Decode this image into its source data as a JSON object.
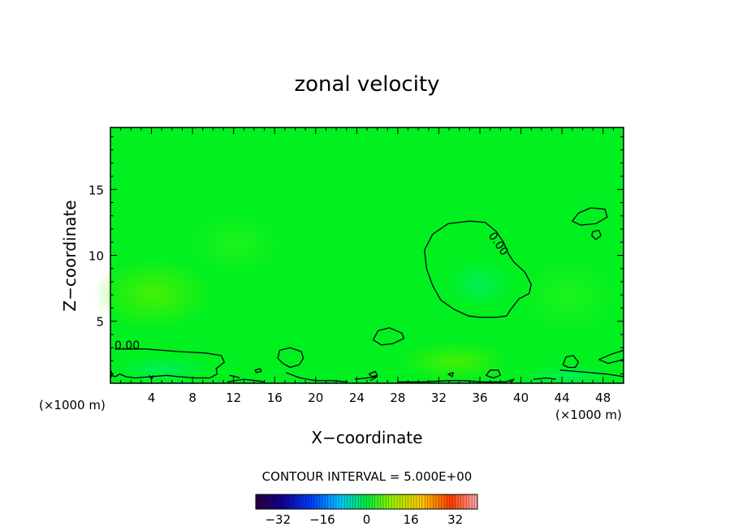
{
  "chart_data": {
    "type": "heatmap",
    "title": "zonal velocity",
    "xlabel": "X−coordinate",
    "ylabel": "Z−coordinate",
    "x_units_left": "(×1000 m)",
    "x_units_right": "(×1000 m)",
    "xlim": [
      0,
      50
    ],
    "ylim": [
      0.3,
      19.7
    ],
    "x_ticks": [
      4,
      8,
      12,
      16,
      20,
      24,
      28,
      32,
      36,
      40,
      44,
      48
    ],
    "x_tick_labels": [
      "4",
      "8",
      "12",
      "16",
      "20",
      "24",
      "28",
      "32",
      "36",
      "40",
      "44",
      "48"
    ],
    "y_ticks": [
      5,
      10,
      15
    ],
    "y_tick_labels": [
      "5",
      "10",
      "15"
    ],
    "contour_labels": [
      {
        "text": "0.00",
        "x": 36.8,
        "y": 11.5,
        "rotate": 55
      },
      {
        "text": "0.00",
        "x": 0.4,
        "y": 2.9,
        "rotate": 0
      }
    ],
    "contours": [
      {
        "name": "big-loop",
        "closed": true,
        "points": [
          [
            35.0,
            12.6
          ],
          [
            36.5,
            12.5
          ],
          [
            37.6,
            11.8
          ],
          [
            38.3,
            11.0
          ],
          [
            38.8,
            10.1
          ],
          [
            39.3,
            9.5
          ],
          [
            40.4,
            8.7
          ],
          [
            41.0,
            7.8
          ],
          [
            40.8,
            7.1
          ],
          [
            39.8,
            6.7
          ],
          [
            39.0,
            5.9
          ],
          [
            38.6,
            5.4
          ],
          [
            37.6,
            5.3
          ],
          [
            36.0,
            5.3
          ],
          [
            34.9,
            5.4
          ],
          [
            33.5,
            5.9
          ],
          [
            32.2,
            6.6
          ],
          [
            31.4,
            7.7
          ],
          [
            30.8,
            9.0
          ],
          [
            30.6,
            10.4
          ],
          [
            31.4,
            11.6
          ],
          [
            32.9,
            12.4
          ]
        ]
      },
      {
        "name": "loop-44-13",
        "closed": true,
        "points": [
          [
            45.0,
            12.6
          ],
          [
            45.6,
            13.2
          ],
          [
            46.8,
            13.6
          ],
          [
            48.2,
            13.5
          ],
          [
            48.4,
            12.9
          ],
          [
            47.3,
            12.4
          ],
          [
            45.8,
            12.3
          ]
        ]
      },
      {
        "name": "loop-47-11",
        "closed": true,
        "points": [
          [
            47.0,
            11.8
          ],
          [
            47.6,
            11.9
          ],
          [
            47.8,
            11.5
          ],
          [
            47.3,
            11.2
          ],
          [
            46.9,
            11.5
          ]
        ]
      },
      {
        "name": "loop-26-4",
        "closed": true,
        "points": [
          [
            25.6,
            3.6
          ],
          [
            26.1,
            4.3
          ],
          [
            27.2,
            4.5
          ],
          [
            28.4,
            4.1
          ],
          [
            28.6,
            3.7
          ],
          [
            27.5,
            3.3
          ],
          [
            26.4,
            3.2
          ]
        ]
      },
      {
        "name": "loop-17-2",
        "closed": true,
        "points": [
          [
            16.3,
            2.2
          ],
          [
            16.5,
            2.8
          ],
          [
            17.5,
            3.0
          ],
          [
            18.6,
            2.7
          ],
          [
            18.8,
            2.2
          ],
          [
            18.4,
            1.7
          ],
          [
            17.5,
            1.5
          ],
          [
            16.8,
            1.8
          ]
        ]
      },
      {
        "name": "loop-44-2",
        "closed": true,
        "points": [
          [
            44.1,
            1.7
          ],
          [
            44.4,
            2.3
          ],
          [
            45.1,
            2.4
          ],
          [
            45.6,
            1.9
          ],
          [
            45.3,
            1.5
          ],
          [
            44.6,
            1.5
          ]
        ]
      },
      {
        "name": "left-bottom",
        "closed": false,
        "points": [
          [
            0.4,
            2.9
          ],
          [
            3.4,
            2.9
          ],
          [
            6.6,
            2.7
          ],
          [
            9.2,
            2.6
          ],
          [
            10.8,
            2.4
          ],
          [
            11.1,
            1.9
          ],
          [
            10.3,
            1.4
          ],
          [
            10.4,
            1.0
          ],
          [
            9.7,
            0.7
          ],
          [
            8.3,
            0.7
          ],
          [
            6.6,
            0.8
          ],
          [
            5.5,
            0.9
          ],
          [
            4.0,
            0.8
          ],
          [
            2.4,
            0.7
          ],
          [
            1.5,
            0.8
          ],
          [
            0.9,
            1.0
          ],
          [
            0.5,
            0.8
          ],
          [
            0.0,
            0.9
          ]
        ]
      },
      {
        "name": "bottom-band-a",
        "closed": false,
        "points": [
          [
            17.1,
            1.1
          ],
          [
            18.5,
            0.7
          ],
          [
            20.0,
            0.5
          ],
          [
            21.7,
            0.5
          ],
          [
            23.1,
            0.4
          ]
        ]
      },
      {
        "name": "bottom-band-b",
        "closed": false,
        "points": [
          [
            11.4,
            0.4
          ],
          [
            13.0,
            0.6
          ],
          [
            14.2,
            0.5
          ],
          [
            15.0,
            0.4
          ]
        ]
      },
      {
        "name": "bottom-band-c",
        "closed": false,
        "points": [
          [
            23.8,
            0.6
          ],
          [
            25.0,
            0.7
          ],
          [
            26.0,
            0.8
          ],
          [
            25.3,
            0.5
          ]
        ]
      },
      {
        "name": "bottom-band-d",
        "closed": false,
        "points": [
          [
            28.0,
            0.4
          ],
          [
            30.5,
            0.4
          ],
          [
            33.0,
            0.5
          ],
          [
            34.5,
            0.5
          ],
          [
            36.0,
            0.4
          ],
          [
            38.5,
            0.4
          ],
          [
            39.3,
            0.6
          ],
          [
            39.0,
            0.3
          ]
        ]
      },
      {
        "name": "small-37-1",
        "closed": true,
        "points": [
          [
            36.6,
            0.9
          ],
          [
            37.0,
            1.3
          ],
          [
            37.8,
            1.3
          ],
          [
            38.0,
            0.9
          ],
          [
            37.3,
            0.7
          ]
        ]
      },
      {
        "name": "right-tail-a",
        "closed": false,
        "points": [
          [
            41.2,
            0.6
          ],
          [
            42.5,
            0.7
          ],
          [
            43.4,
            0.6
          ]
        ]
      },
      {
        "name": "right-tail-b",
        "closed": false,
        "points": [
          [
            43.8,
            1.3
          ],
          [
            45.3,
            1.2
          ],
          [
            46.8,
            1.1
          ],
          [
            48.3,
            1.0
          ],
          [
            49.2,
            0.9
          ],
          [
            50.0,
            0.8
          ]
        ]
      },
      {
        "name": "right-edge",
        "closed": false,
        "points": [
          [
            50.0,
            2.8
          ],
          [
            48.8,
            2.5
          ],
          [
            47.6,
            2.1
          ],
          [
            48.5,
            1.8
          ],
          [
            49.5,
            2.0
          ],
          [
            50.0,
            2.1
          ]
        ]
      },
      {
        "name": "left-edge-small",
        "closed": false,
        "points": [
          [
            0.0,
            1.3
          ],
          [
            0.2,
            1.0
          ],
          [
            0.0,
            0.7
          ]
        ]
      },
      {
        "name": "tick-4",
        "closed": false,
        "points": [
          [
            3.8,
            0.9
          ],
          [
            4.0,
            0.6
          ],
          [
            4.2,
            0.9
          ]
        ]
      },
      {
        "name": "tiny-14",
        "closed": true,
        "points": [
          [
            14.1,
            1.3
          ],
          [
            14.6,
            1.4
          ],
          [
            14.7,
            1.2
          ],
          [
            14.2,
            1.1
          ]
        ]
      },
      {
        "name": "tiny-25",
        "closed": true,
        "points": [
          [
            25.2,
            1.0
          ],
          [
            25.8,
            1.2
          ],
          [
            26.0,
            0.9
          ],
          [
            25.5,
            0.8
          ]
        ]
      },
      {
        "name": "tiny-33",
        "closed": true,
        "points": [
          [
            32.9,
            1.0
          ],
          [
            33.4,
            1.1
          ],
          [
            33.3,
            0.8
          ]
        ]
      },
      {
        "name": "tiny-12",
        "closed": false,
        "points": [
          [
            11.6,
            0.9
          ],
          [
            12.2,
            0.8
          ],
          [
            12.6,
            0.7
          ]
        ]
      }
    ],
    "colorbar": {
      "label": "CONTOUR INTERVAL = 5.000E+00",
      "ticks": [
        -32,
        -16,
        0,
        16,
        32
      ],
      "tick_labels": [
        "−32",
        "−16",
        "0",
        "16",
        "32"
      ],
      "range": [
        -40,
        40
      ]
    },
    "field_color": "#00f020"
  }
}
